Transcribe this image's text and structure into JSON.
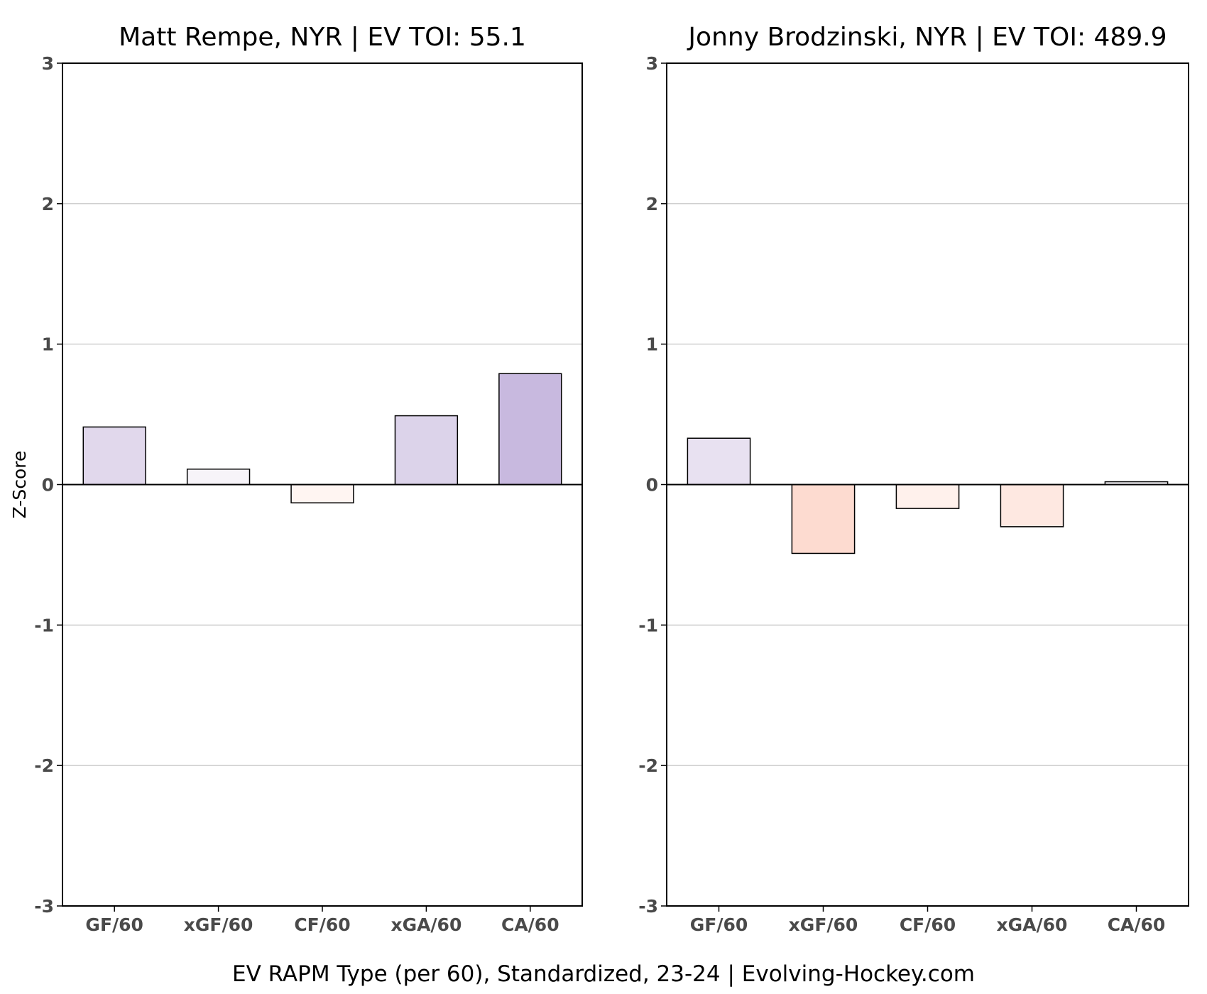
{
  "footer": "EV RAPM Type (per 60), Standardized, 23-24    |    Evolving-Hockey.com",
  "chart_data": [
    {
      "type": "bar",
      "title": "Matt Rempe, NYR  |  EV TOI: 55.1",
      "ylabel": "Z-Score",
      "ylim": [
        -3,
        3
      ],
      "yticks": [
        "3",
        "2",
        "1",
        "0",
        "-1",
        "-2",
        "-3"
      ],
      "ytick_values": [
        3,
        2,
        1,
        0,
        -1,
        -2,
        -3
      ],
      "grid": true,
      "categories": [
        "GF/60",
        "xGF/60",
        "CF/60",
        "xGA/60",
        "CA/60"
      ],
      "values": [
        0.41,
        0.11,
        -0.13,
        0.49,
        0.79
      ],
      "colors": [
        "#e1d8ec",
        "#f7f4f9",
        "#fff5f2",
        "#dcd3ea",
        "#c8b9df"
      ]
    },
    {
      "type": "bar",
      "title": "Jonny Brodzinski, NYR  |  EV TOI: 489.9",
      "ylabel": "",
      "ylim": [
        -3,
        3
      ],
      "yticks": [
        "3",
        "2",
        "1",
        "0",
        "-1",
        "-2",
        "-3"
      ],
      "ytick_values": [
        3,
        2,
        1,
        0,
        -1,
        -2,
        -3
      ],
      "grid": true,
      "categories": [
        "GF/60",
        "xGF/60",
        "CF/60",
        "xGA/60",
        "CA/60"
      ],
      "values": [
        0.33,
        -0.49,
        -0.17,
        -0.3,
        0.02
      ],
      "colors": [
        "#e8e1f1",
        "#fddbd0",
        "#fff1ec",
        "#fee8e1",
        "#faf8fc"
      ]
    }
  ]
}
